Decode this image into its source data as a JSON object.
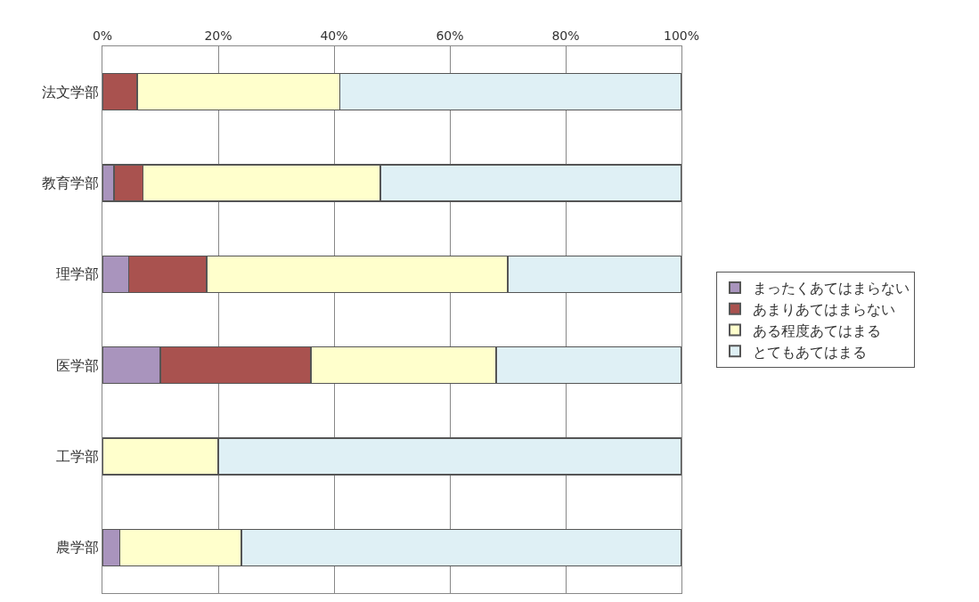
{
  "chart_data": {
    "type": "bar",
    "orientation": "horizontal",
    "stacked": true,
    "categories": [
      "法文学部",
      "教育学部",
      "理学部",
      "医学部",
      "工学部",
      "農学部"
    ],
    "series": [
      {
        "name": "まったくあてはまらない",
        "color": "#a994bd",
        "values": [
          0,
          2,
          4.5,
          10,
          0,
          3
        ]
      },
      {
        "name": "あまりあてはまらない",
        "color": "#a9524f",
        "values": [
          6,
          5,
          13.5,
          26,
          0,
          0
        ]
      },
      {
        "name": "ある程度あてはまる",
        "color": "#ffffcc",
        "values": [
          35,
          41,
          52,
          32,
          20,
          21
        ]
      },
      {
        "name": "とてもあてはまる",
        "color": "#dff0f5",
        "values": [
          59,
          52,
          30,
          32,
          80,
          76
        ]
      }
    ],
    "xlim": [
      0,
      100
    ],
    "xticks": [
      {
        "value": 0,
        "label": "0%"
      },
      {
        "value": 20,
        "label": "20%"
      },
      {
        "value": 40,
        "label": "40%"
      },
      {
        "value": 60,
        "label": "60%"
      },
      {
        "value": 80,
        "label": "80%"
      },
      {
        "value": 100,
        "label": "100%"
      }
    ],
    "grid": "x",
    "legend": "right"
  }
}
